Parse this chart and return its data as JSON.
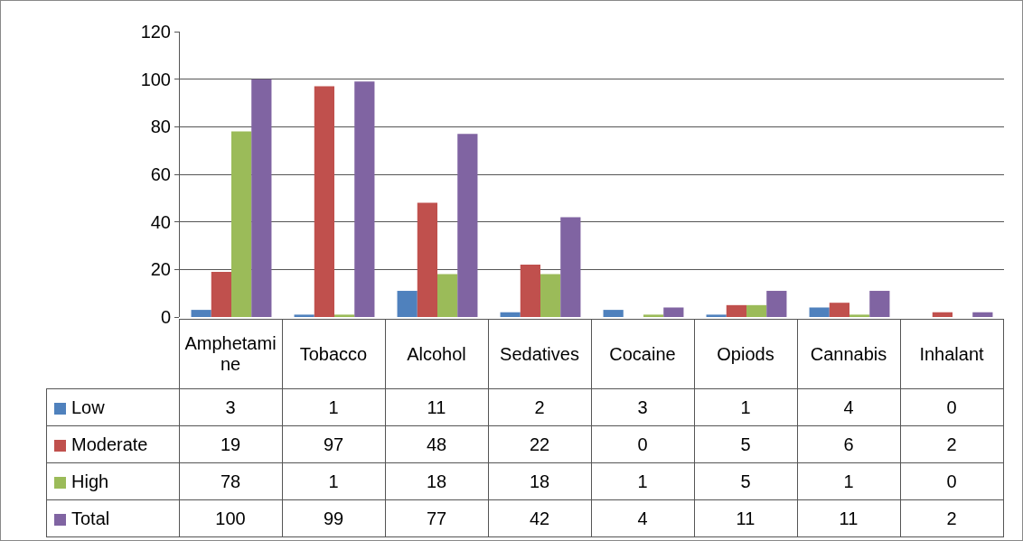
{
  "chart_data": {
    "type": "bar",
    "categories": [
      "Amphetamine",
      "Tobacco",
      "Alcohol",
      "Sedatives",
      "Cocaine",
      "Opiods",
      "Cannabis",
      "Inhalant"
    ],
    "series": [
      {
        "name": "Low",
        "color": "#4f81bd",
        "values": [
          3,
          1,
          11,
          2,
          3,
          1,
          4,
          0
        ]
      },
      {
        "name": "Moderate",
        "color": "#c0504d",
        "values": [
          19,
          97,
          48,
          22,
          0,
          5,
          6,
          2
        ]
      },
      {
        "name": "High",
        "color": "#9bbb59",
        "values": [
          78,
          1,
          18,
          18,
          1,
          5,
          1,
          0
        ]
      },
      {
        "name": "Total",
        "color": "#8064a2",
        "values": [
          100,
          99,
          77,
          42,
          4,
          11,
          11,
          2
        ]
      }
    ],
    "ylim": [
      0,
      120
    ],
    "yticks": [
      0,
      20,
      40,
      60,
      80,
      100,
      120
    ],
    "grid": "y",
    "legend": "bottom",
    "data_labels": true
  }
}
